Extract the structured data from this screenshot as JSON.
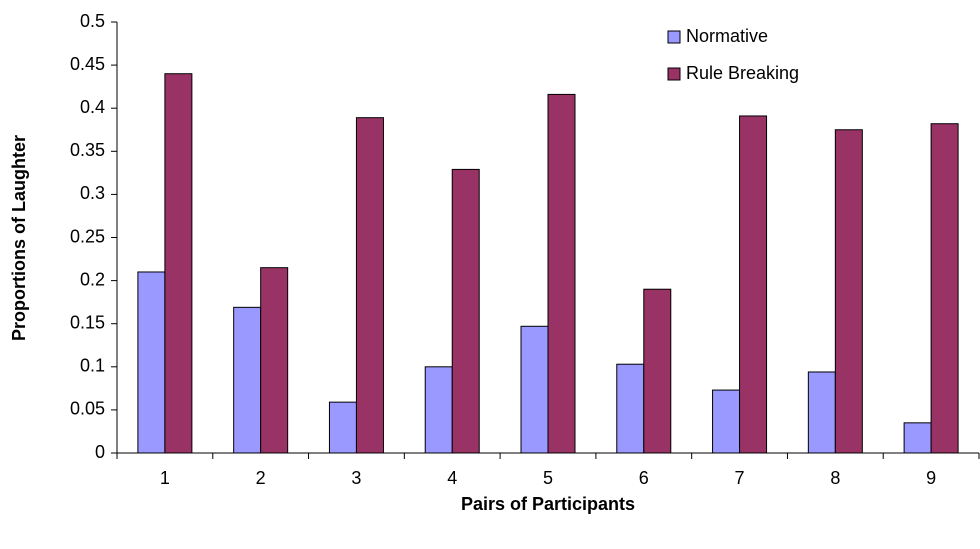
{
  "chart_data": {
    "type": "bar",
    "x_label": "Pairs of Participants",
    "y_label": "Proportions of Laughter",
    "categories": [
      "1",
      "2",
      "3",
      "4",
      "5",
      "6",
      "7",
      "8",
      "9"
    ],
    "series": [
      {
        "name": "Normative",
        "color": "#9999ff",
        "values": [
          0.21,
          0.169,
          0.059,
          0.1,
          0.147,
          0.103,
          0.073,
          0.094,
          0.035
        ]
      },
      {
        "name": "Rule Breaking",
        "color": "#993366",
        "values": [
          0.44,
          0.215,
          0.389,
          0.329,
          0.416,
          0.19,
          0.391,
          0.375,
          0.382
        ]
      }
    ],
    "ylim": [
      0,
      0.5
    ],
    "yticks": [
      0,
      0.05,
      0.1,
      0.15,
      0.2,
      0.25,
      0.3,
      0.35,
      0.4,
      0.45,
      0.5
    ],
    "grid": false,
    "legend": "top-right"
  }
}
